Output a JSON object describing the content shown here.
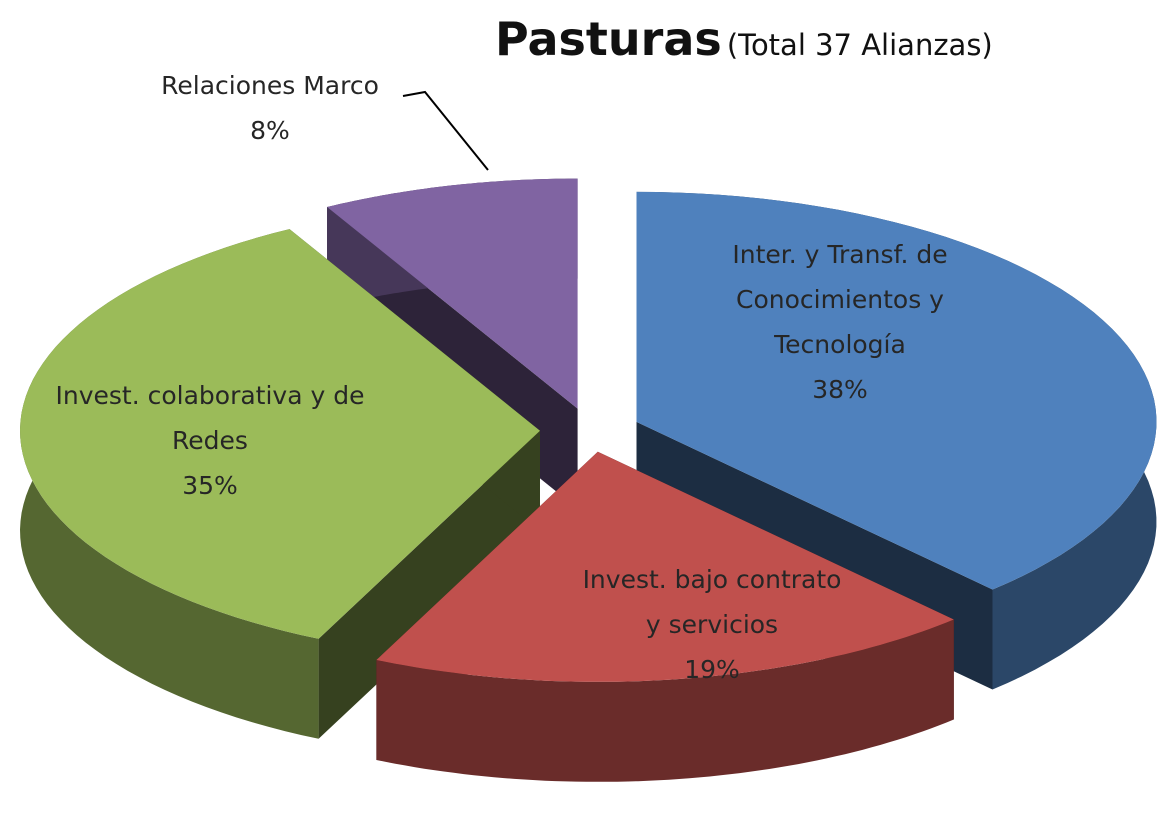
{
  "chart_data": {
    "type": "pie3d",
    "title": "Pasturas",
    "subtitle": "(Total 37 Alianzas)",
    "categories": [
      "Inter. y Transf. de Conocimientos y Tecnología",
      "Invest. bajo contrato y servicios",
      "Invest. colaborativa y de Redes",
      "Relaciones Marco"
    ],
    "values": [
      38,
      19,
      35,
      8
    ],
    "value_labels": [
      "38%",
      "19%",
      "35%",
      "8%"
    ],
    "colors": [
      "#4f81bd",
      "#c0504d",
      "#9bbb59",
      "#8064a2"
    ]
  }
}
